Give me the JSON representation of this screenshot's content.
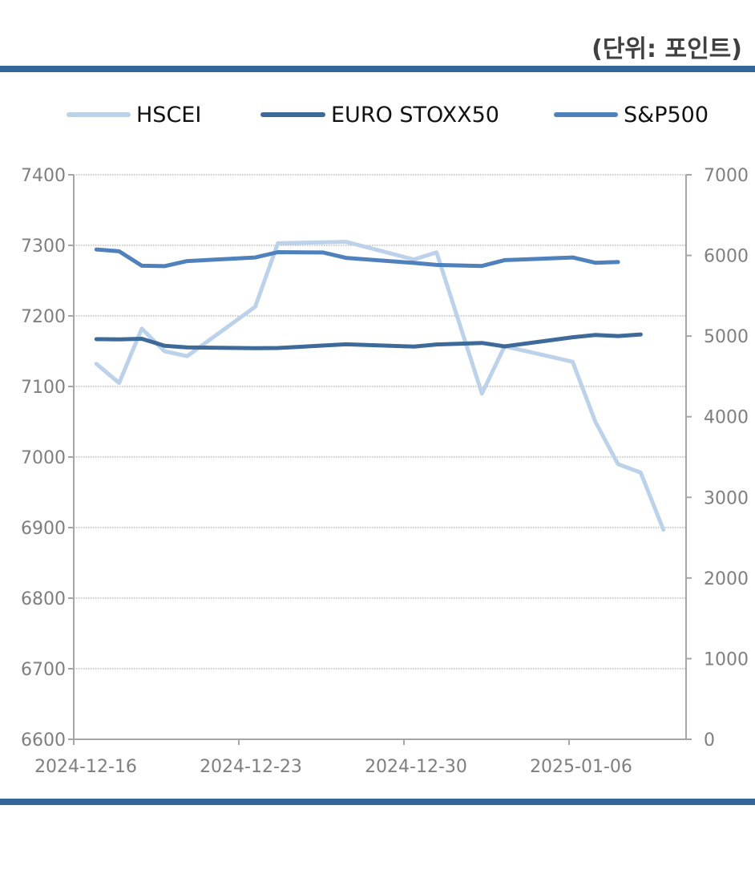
{
  "unit_label": "(단위: 포인트)",
  "colors": {
    "hscei": "#bcd1ea",
    "euro": "#3d6a99",
    "sp": "#4f81bd",
    "rule": "#34659b"
  },
  "chart_data": {
    "type": "line",
    "legend": [
      "HSCEI",
      "EURO STOXX50",
      "S&P500"
    ],
    "legend_placement": "top",
    "grid": true,
    "x_ticks": [
      "2024-12-16",
      "2024-12-23",
      "2024-12-30",
      "2025-01-06"
    ],
    "y_left": {
      "lim": [
        6600,
        7400
      ],
      "ticks": [
        "7400",
        "7300",
        "7200",
        "7100",
        "7000",
        "6900",
        "6800",
        "6700",
        "6600"
      ]
    },
    "y_right": {
      "lim": [
        0,
        7000
      ],
      "ticks": [
        "7000",
        "6000",
        "5000",
        "4000",
        "3000",
        "2000",
        "1000",
        "0"
      ]
    },
    "series": [
      {
        "name": "HSCEI",
        "axis": "left",
        "points": [
          [
            "2024-12-16",
            7132
          ],
          [
            "2024-12-17",
            7105
          ],
          [
            "2024-12-18",
            7182
          ],
          [
            "2024-12-19",
            7150
          ],
          [
            "2024-12-20",
            7143
          ],
          [
            "2024-12-23",
            7213
          ],
          [
            "2024-12-24",
            7303
          ],
          [
            "2024-12-27",
            7305
          ],
          [
            "2024-12-30",
            7280
          ],
          [
            "2024-12-31",
            7290
          ],
          [
            "2025-01-02",
            7090
          ],
          [
            "2025-01-03",
            7157
          ],
          [
            "2025-01-06",
            7135
          ],
          [
            "2025-01-07",
            7050
          ],
          [
            "2025-01-08",
            6990
          ],
          [
            "2025-01-09",
            6978
          ],
          [
            "2025-01-10",
            6897
          ]
        ]
      },
      {
        "name": "EURO STOXX50",
        "axis": "right",
        "points": [
          [
            "2024-12-16",
            4962
          ],
          [
            "2024-12-17",
            4960
          ],
          [
            "2024-12-18",
            4967
          ],
          [
            "2024-12-19",
            4880
          ],
          [
            "2024-12-20",
            4860
          ],
          [
            "2024-12-23",
            4850
          ],
          [
            "2024-12-24",
            4852
          ],
          [
            "2024-12-27",
            4898
          ],
          [
            "2024-12-30",
            4870
          ],
          [
            "2024-12-31",
            4896
          ],
          [
            "2025-01-02",
            4915
          ],
          [
            "2025-01-03",
            4872
          ],
          [
            "2025-01-06",
            4986
          ],
          [
            "2025-01-07",
            5013
          ],
          [
            "2025-01-08",
            5000
          ],
          [
            "2025-01-09",
            5020
          ]
        ]
      },
      {
        "name": "S&P500",
        "axis": "right",
        "points": [
          [
            "2024-12-16",
            6074
          ],
          [
            "2024-12-17",
            6051
          ],
          [
            "2024-12-18",
            5872
          ],
          [
            "2024-12-19",
            5867
          ],
          [
            "2024-12-20",
            5930
          ],
          [
            "2024-12-23",
            5975
          ],
          [
            "2024-12-24",
            6040
          ],
          [
            "2024-12-26",
            6037
          ],
          [
            "2024-12-27",
            5970
          ],
          [
            "2024-12-30",
            5907
          ],
          [
            "2024-12-31",
            5882
          ],
          [
            "2025-01-02",
            5869
          ],
          [
            "2025-01-03",
            5942
          ],
          [
            "2025-01-06",
            5975
          ],
          [
            "2025-01-07",
            5909
          ],
          [
            "2025-01-08",
            5918
          ]
        ]
      }
    ]
  }
}
